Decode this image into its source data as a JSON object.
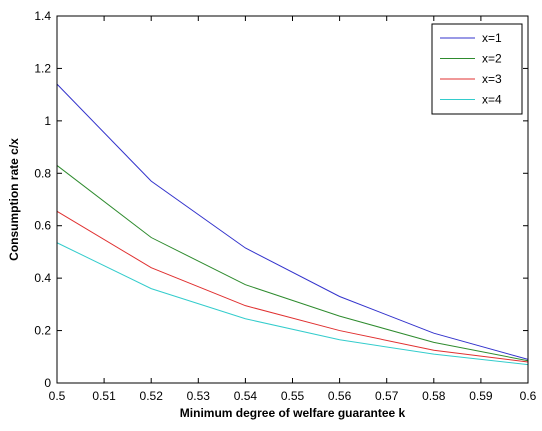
{
  "chart_data": {
    "type": "line",
    "xlabel": "Minimum degree of welfare guarantee k",
    "ylabel": "Consumption rate c/x",
    "xlim": [
      0.5,
      0.6
    ],
    "ylim": [
      0,
      1.4
    ],
    "xticks": [
      0.5,
      0.51,
      0.52,
      0.53,
      0.54,
      0.55,
      0.56,
      0.57,
      0.58,
      0.59,
      0.6
    ],
    "xtick_labels": [
      "0.5",
      "0.51",
      "0.52",
      "0.53",
      "0.54",
      "0.55",
      "0.56",
      "0.57",
      "0.58",
      "0.59",
      "0.6"
    ],
    "yticks": [
      0,
      0.2,
      0.4,
      0.6,
      0.8,
      1,
      1.2,
      1.4
    ],
    "ytick_labels": [
      "0",
      "0.2",
      "0.4",
      "0.6",
      "0.8",
      "1",
      "1.2",
      "1.4"
    ],
    "grid": false,
    "legend_position": "top-right",
    "x": [
      0.5,
      0.52,
      0.54,
      0.56,
      0.58,
      0.6
    ],
    "series": [
      {
        "name": "x=1",
        "color": "#3333cc",
        "values": [
          1.14,
          0.77,
          0.515,
          0.33,
          0.19,
          0.09
        ]
      },
      {
        "name": "x=2",
        "color": "#2e8b2e",
        "values": [
          0.83,
          0.555,
          0.375,
          0.255,
          0.155,
          0.085
        ]
      },
      {
        "name": "x=3",
        "color": "#e03030",
        "values": [
          0.655,
          0.44,
          0.295,
          0.2,
          0.125,
          0.08
        ]
      },
      {
        "name": "x=4",
        "color": "#33cccc",
        "values": [
          0.535,
          0.36,
          0.245,
          0.165,
          0.11,
          0.07
        ]
      }
    ]
  }
}
